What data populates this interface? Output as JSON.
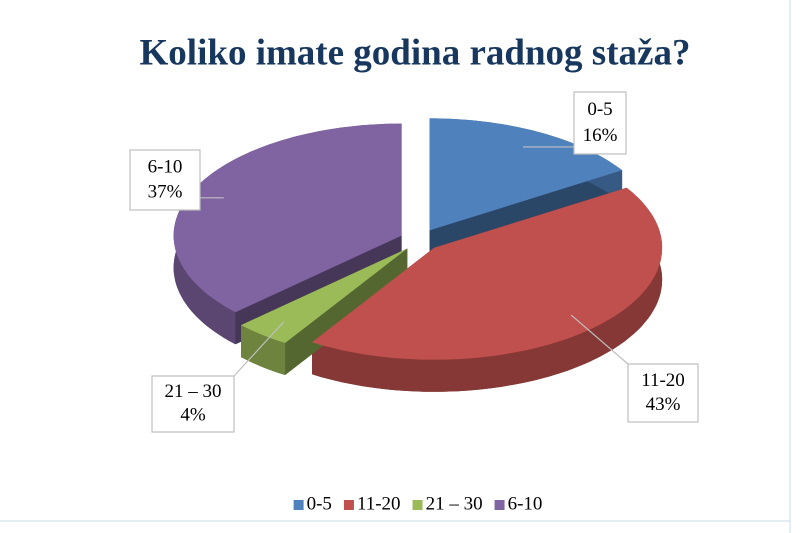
{
  "chart_data": {
    "type": "pie",
    "title": "Koliko imate godina radnog staža?",
    "categories": [
      "0-5",
      "11-20",
      "21 – 30",
      "6-10"
    ],
    "values": [
      16,
      43,
      4,
      37
    ],
    "value_labels": [
      "16%",
      "43%",
      "4%",
      "37%"
    ],
    "colors": [
      "#4f81bd",
      "#c0504d",
      "#9bbb59",
      "#8064a2"
    ],
    "legend": "bottom"
  }
}
